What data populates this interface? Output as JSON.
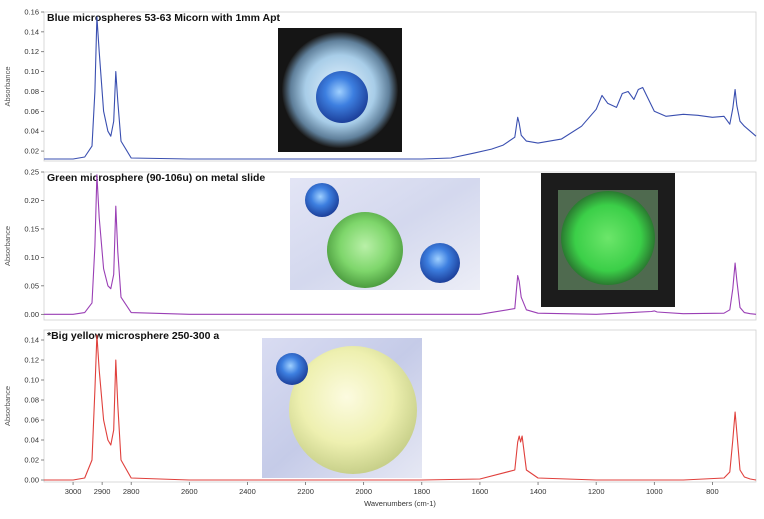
{
  "chart_data": [
    {
      "type": "line",
      "title": "Blue microspheres 53-63 Micorn  with 1mm Apt",
      "ylabel": "Absorbance",
      "ylim": [
        0.01,
        0.16
      ],
      "yticks": [
        0.02,
        0.04,
        0.06,
        0.08,
        0.1,
        0.12,
        0.14,
        0.16
      ],
      "color": "#3a4fb0",
      "inset": "photo of blue microsphere under microscope",
      "x": [
        3100,
        3000,
        2960,
        2935,
        2925,
        2918,
        2910,
        2895,
        2880,
        2870,
        2860,
        2853,
        2846,
        2835,
        2800,
        2600,
        2400,
        2200,
        2000,
        1800,
        1700,
        1620,
        1560,
        1520,
        1480,
        1470,
        1465,
        1458,
        1440,
        1400,
        1320,
        1250,
        1200,
        1180,
        1160,
        1130,
        1110,
        1090,
        1070,
        1055,
        1040,
        1000,
        960,
        900,
        850,
        800,
        760,
        740,
        730,
        722,
        716,
        705,
        690,
        670,
        650
      ],
      "y": [
        0.012,
        0.012,
        0.014,
        0.025,
        0.08,
        0.155,
        0.12,
        0.06,
        0.04,
        0.035,
        0.05,
        0.1,
        0.07,
        0.03,
        0.013,
        0.012,
        0.012,
        0.012,
        0.012,
        0.012,
        0.013,
        0.018,
        0.022,
        0.026,
        0.034,
        0.054,
        0.048,
        0.036,
        0.03,
        0.028,
        0.032,
        0.045,
        0.062,
        0.076,
        0.068,
        0.064,
        0.078,
        0.08,
        0.072,
        0.082,
        0.084,
        0.06,
        0.055,
        0.057,
        0.056,
        0.054,
        0.055,
        0.047,
        0.063,
        0.082,
        0.066,
        0.05,
        0.045,
        0.04,
        0.035
      ]
    },
    {
      "type": "line",
      "title": "Green microsphere (90-106u) on metal slide",
      "ylabel": "Absorbance",
      "ylim": [
        -0.01,
        0.25
      ],
      "yticks": [
        0.0,
        0.05,
        0.1,
        0.15,
        0.2,
        0.25
      ],
      "color": "#9a3fb5",
      "inset": "photos of green and blue microspheres",
      "x": [
        3100,
        3000,
        2960,
        2935,
        2925,
        2918,
        2910,
        2895,
        2880,
        2870,
        2860,
        2853,
        2846,
        2835,
        2800,
        2600,
        2200,
        1800,
        1600,
        1480,
        1470,
        1465,
        1458,
        1440,
        1400,
        1200,
        1010,
        1000,
        990,
        900,
        760,
        740,
        730,
        722,
        716,
        705,
        690,
        670,
        650
      ],
      "y": [
        0.0,
        0.0,
        0.003,
        0.02,
        0.12,
        0.245,
        0.17,
        0.08,
        0.05,
        0.045,
        0.07,
        0.19,
        0.11,
        0.03,
        0.003,
        0.0,
        0.0,
        0.0,
        0.0,
        0.01,
        0.068,
        0.058,
        0.03,
        0.008,
        0.002,
        0.0,
        0.005,
        0.006,
        0.004,
        0.001,
        0.002,
        0.008,
        0.045,
        0.09,
        0.06,
        0.012,
        0.003,
        0.001,
        0.0
      ]
    },
    {
      "type": "line",
      "title": "*Big yellow microsphere 250-300 a",
      "ylabel": "Absorbance",
      "ylim": [
        -0.002,
        0.15
      ],
      "yticks": [
        0.0,
        0.02,
        0.04,
        0.06,
        0.08,
        0.1,
        0.12,
        0.14
      ],
      "color": "#e0403c",
      "inset": "photo of yellow microsphere with small blue microsphere",
      "x": [
        3100,
        3000,
        2960,
        2935,
        2925,
        2918,
        2910,
        2895,
        2880,
        2870,
        2860,
        2853,
        2846,
        2835,
        2800,
        2600,
        2200,
        1800,
        1600,
        1480,
        1470,
        1465,
        1460,
        1455,
        1440,
        1400,
        1200,
        1000,
        900,
        760,
        740,
        730,
        722,
        716,
        705,
        690,
        670,
        650
      ],
      "y": [
        0.0,
        0.0,
        0.002,
        0.02,
        0.09,
        0.145,
        0.11,
        0.06,
        0.04,
        0.035,
        0.05,
        0.12,
        0.075,
        0.02,
        0.002,
        0.0,
        0.0,
        0.0,
        0.001,
        0.01,
        0.038,
        0.044,
        0.038,
        0.044,
        0.01,
        0.002,
        0.0,
        0.0,
        0.0,
        0.002,
        0.008,
        0.04,
        0.068,
        0.048,
        0.01,
        0.003,
        0.001,
        0.0
      ]
    }
  ],
  "x_axis": {
    "label": "Wavenumbers (cm-1)",
    "xlim": [
      3100,
      650
    ],
    "ticks": [
      3000,
      2900,
      2800,
      2600,
      2400,
      2200,
      2000,
      1800,
      1600,
      1400,
      1200,
      1000,
      800
    ]
  }
}
